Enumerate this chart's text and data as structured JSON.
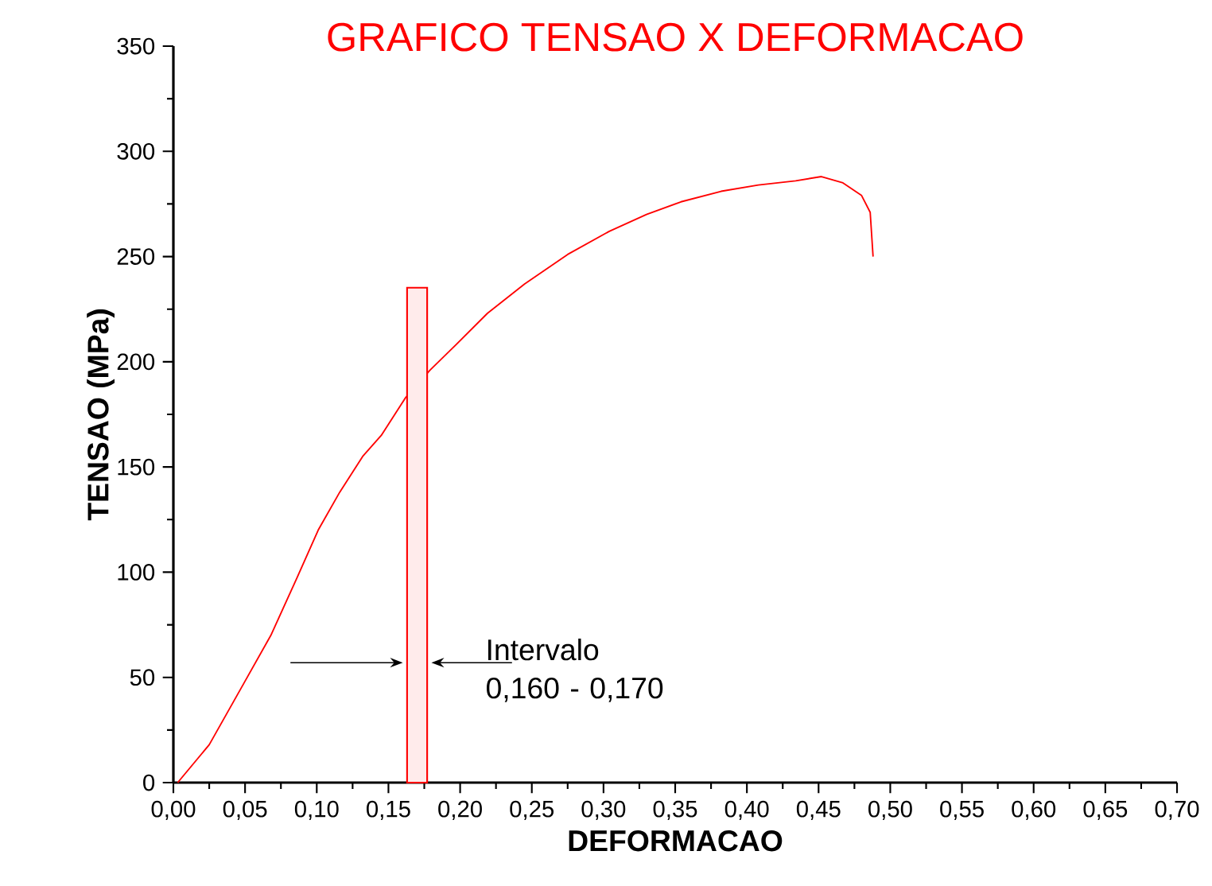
{
  "chart_data": {
    "type": "line",
    "title": "GRAFICO  TENSAO  X  DEFORMACAO",
    "xlabel": "DEFORMACAO",
    "ylabel": "TENSAO (MPa)",
    "x": [
      0.003,
      0.025,
      0.049,
      0.068,
      0.086,
      0.101,
      0.116,
      0.132,
      0.145,
      0.162,
      0.179,
      0.197,
      0.219,
      0.245,
      0.275,
      0.304,
      0.33,
      0.354,
      0.382,
      0.408,
      0.434,
      0.452,
      0.467,
      0.48,
      0.486,
      0.488
    ],
    "series": [
      {
        "color": "#ff0000",
        "values": [
          0,
          18,
          47,
          70,
          97,
          120,
          138,
          155,
          165,
          183,
          196,
          208,
          223,
          237,
          251,
          262,
          270,
          276,
          281,
          284,
          286,
          288,
          285,
          279,
          271,
          250
        ]
      }
    ],
    "xlim": [
      0,
      0.7
    ],
    "xticks": [
      {
        "value": 0,
        "label": "0,00"
      },
      {
        "value": 0.05,
        "label": "0,05"
      },
      {
        "value": 0.1,
        "label": "0,10"
      },
      {
        "value": 0.15,
        "label": "0,15"
      },
      {
        "value": 0.2,
        "label": "0,20"
      },
      {
        "value": 0.25,
        "label": "0,25"
      },
      {
        "value": 0.3,
        "label": "0,30"
      },
      {
        "value": 0.35,
        "label": "0,35"
      },
      {
        "value": 0.4,
        "label": "0,40"
      },
      {
        "value": 0.45,
        "label": "0,45"
      },
      {
        "value": 0.5,
        "label": "0,50"
      },
      {
        "value": 0.55,
        "label": "0,55"
      },
      {
        "value": 0.6,
        "label": "0,60"
      },
      {
        "value": 0.65,
        "label": "0,65"
      },
      {
        "value": 0.7,
        "label": "0,70"
      }
    ],
    "ylim": [
      0,
      350
    ],
    "yticks": [
      0,
      50,
      100,
      150,
      200,
      250,
      300,
      350
    ],
    "bands": [
      {
        "axis": "x",
        "from": 0.163,
        "to": 0.177,
        "label": "Intervalo 0,160 - 0,170",
        "color": "#ff0000"
      }
    ],
    "grid": false,
    "legend": false,
    "marker": "none",
    "line_style": "solid"
  }
}
